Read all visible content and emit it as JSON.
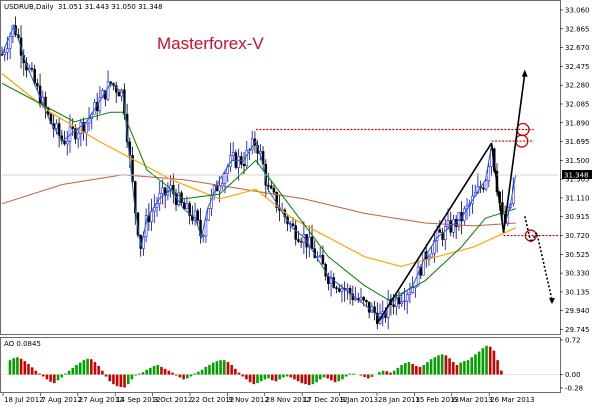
{
  "chart_data": [
    {
      "type": "candlestick",
      "title": "USDRUB,Daily",
      "ohlc_label": "31.051 31.443 31.050 31.348",
      "watermark": "Masterforex-V",
      "last_price": "31.348",
      "ylim": [
        29.74,
        33.06
      ],
      "y_ticks": [
        "33.060",
        "32.865",
        "32.670",
        "32.475",
        "32.280",
        "32.085",
        "31.890",
        "31.695",
        "31.500",
        "31.305",
        "31.110",
        "30.915",
        "30.720",
        "30.525",
        "30.330",
        "30.135",
        "29.940",
        "29.745"
      ],
      "x_ticks": [
        "18 Jul 2012",
        "7 Aug 2012",
        "27 Aug 2012",
        "14 Sep 2012",
        "3 Oct 2012",
        "22 Oct 2012",
        "9 Nov 2012",
        "28 Nov 2012",
        "17 Dec 2012",
        "9 Jan 2013",
        "28 Jan 2013",
        "15 Feb 2013",
        "6 Mar 2013",
        "26 Mar 2013"
      ],
      "price_path": [
        [
          0,
          32.6
        ],
        [
          2,
          32.9
        ],
        [
          4,
          32.5
        ],
        [
          6,
          32.2
        ],
        [
          8,
          31.9
        ],
        [
          10,
          31.7
        ],
        [
          12,
          31.8
        ],
        [
          14,
          31.9
        ],
        [
          16,
          32.1
        ],
        [
          18,
          32.3
        ],
        [
          20,
          32.2
        ],
        [
          21,
          31.6
        ],
        [
          22,
          31.0
        ],
        [
          23,
          30.6
        ],
        [
          24,
          30.9
        ],
        [
          26,
          31.1
        ],
        [
          28,
          31.2
        ],
        [
          30,
          31.0
        ],
        [
          32,
          30.9
        ],
        [
          33,
          30.7
        ],
        [
          34,
          31.0
        ],
        [
          36,
          31.3
        ],
        [
          38,
          31.5
        ],
        [
          40,
          31.5
        ],
        [
          41,
          31.6
        ],
        [
          42,
          31.7
        ],
        [
          43,
          31.5
        ],
        [
          44,
          31.2
        ],
        [
          46,
          31.0
        ],
        [
          48,
          30.8
        ],
        [
          50,
          30.7
        ],
        [
          52,
          30.5
        ],
        [
          54,
          30.3
        ],
        [
          56,
          30.2
        ],
        [
          58,
          30.1
        ],
        [
          60,
          30.0
        ],
        [
          62,
          29.9
        ],
        [
          63,
          29.85
        ],
        [
          64,
          30.0
        ],
        [
          66,
          30.1
        ],
        [
          68,
          30.2
        ],
        [
          70,
          30.5
        ],
        [
          72,
          30.7
        ],
        [
          74,
          30.8
        ],
        [
          76,
          30.9
        ],
        [
          78,
          31.1
        ],
        [
          80,
          31.3
        ],
        [
          81,
          31.65
        ],
        [
          82,
          31.2
        ],
        [
          83,
          30.8
        ],
        [
          84,
          31.0
        ],
        [
          85,
          31.35
        ]
      ],
      "ma_fast": [
        [
          0,
          32.3
        ],
        [
          6,
          32.1
        ],
        [
          12,
          31.9
        ],
        [
          18,
          32.0
        ],
        [
          20,
          32.0
        ],
        [
          24,
          31.4
        ],
        [
          30,
          31.1
        ],
        [
          36,
          31.15
        ],
        [
          42,
          31.5
        ],
        [
          48,
          31.0
        ],
        [
          54,
          30.5
        ],
        [
          60,
          30.2
        ],
        [
          64,
          30.05
        ],
        [
          70,
          30.25
        ],
        [
          76,
          30.6
        ],
        [
          80,
          30.9
        ],
        [
          85,
          31.0
        ]
      ],
      "ma_slow": [
        [
          0,
          32.4
        ],
        [
          8,
          32.0
        ],
        [
          16,
          31.7
        ],
        [
          22,
          31.5
        ],
        [
          28,
          31.3
        ],
        [
          36,
          31.1
        ],
        [
          42,
          31.2
        ],
        [
          48,
          30.9
        ],
        [
          54,
          30.7
        ],
        [
          60,
          30.5
        ],
        [
          66,
          30.4
        ],
        [
          72,
          30.5
        ],
        [
          78,
          30.6
        ],
        [
          85,
          30.8
        ]
      ],
      "ma_long": [
        [
          0,
          31.05
        ],
        [
          10,
          31.25
        ],
        [
          20,
          31.35
        ],
        [
          30,
          31.3
        ],
        [
          40,
          31.2
        ],
        [
          50,
          31.1
        ],
        [
          60,
          30.95
        ],
        [
          70,
          30.85
        ],
        [
          78,
          30.82
        ],
        [
          85,
          30.85
        ]
      ],
      "resistance_levels": [
        31.82,
        31.7
      ],
      "support_level": 30.72,
      "current_level": 31.348,
      "trend_lines": [
        [
          [
            62,
            29.8
          ],
          [
            81,
            31.68
          ]
        ],
        [
          [
            81,
            31.68
          ],
          [
            83,
            30.75
          ]
        ],
        [
          [
            83,
            30.75
          ],
          [
            86.5,
            32.4
          ]
        ]
      ],
      "forecast_path": [
        [
          86.5,
          30.92
        ],
        [
          87.5,
          30.65
        ],
        [
          88.5,
          30.75
        ],
        [
          91,
          30.05
        ]
      ]
    },
    {
      "type": "bar",
      "title": "AO 0.0845",
      "ylim": [
        -0.28,
        0.72
      ],
      "y_ticks": [
        "0.72",
        "0.00",
        "-0.28"
      ],
      "values": [
        0.3,
        0.34,
        0.36,
        0.33,
        0.28,
        0.22,
        0.15,
        0.08,
        0.02,
        -0.04,
        -0.1,
        -0.15,
        -0.18,
        -0.12,
        -0.06,
        0.02,
        0.08,
        0.14,
        0.2,
        0.25,
        0.3,
        0.33,
        0.32,
        0.26,
        0.18,
        0.08,
        -0.04,
        -0.14,
        -0.2,
        -0.24,
        -0.26,
        -0.27,
        -0.2,
        -0.1,
        -0.02,
        0.02,
        0.05,
        0.1,
        0.14,
        0.18,
        0.2,
        0.16,
        0.12,
        0.08,
        0.04,
        -0.02,
        -0.06,
        -0.1,
        -0.08,
        -0.04,
        0.02,
        0.06,
        0.1,
        0.16,
        0.2,
        0.25,
        0.28,
        0.3,
        0.3,
        0.26,
        0.2,
        0.12,
        0.04,
        -0.04,
        -0.1,
        -0.16,
        -0.2,
        -0.18,
        -0.14,
        -0.1,
        -0.08,
        -0.12,
        -0.14,
        -0.1,
        -0.06,
        -0.04,
        -0.06,
        -0.1,
        -0.14,
        -0.18,
        -0.2,
        -0.22,
        -0.2,
        -0.16,
        -0.1,
        -0.06,
        -0.08,
        -0.12,
        -0.16,
        -0.14,
        -0.1,
        -0.04,
        0.02,
        0.02,
        0.0,
        -0.02,
        -0.05,
        -0.08,
        -0.05,
        0.0,
        0.05,
        0.08,
        0.07,
        0.04,
        0.08,
        0.14,
        0.2,
        0.24,
        0.26,
        0.22,
        0.18,
        0.16,
        0.2,
        0.26,
        0.32,
        0.36,
        0.4,
        0.42,
        0.4,
        0.34,
        0.26,
        0.2,
        0.25,
        0.28,
        0.3,
        0.36,
        0.42,
        0.48,
        0.55,
        0.6,
        0.58,
        0.5,
        0.3,
        0.0845
      ]
    }
  ],
  "colors": {
    "up_bar": "#0000ff",
    "down_bar": "#000000",
    "ma_fast": "#008000",
    "ma_slow": "#ffa500",
    "ma_long": "#c06040",
    "fast_line": "#1f5fd0",
    "resistance": "#cc0000",
    "trend": "#000000",
    "ao_up": "#00a000",
    "ao_down": "#d00000",
    "last_price_bg": "#000000"
  }
}
